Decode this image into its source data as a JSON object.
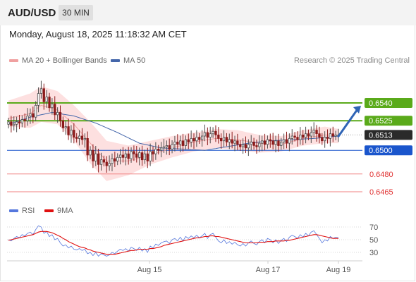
{
  "header": {
    "pair": "AUD/USD",
    "timeframe": "30 MIN"
  },
  "timestamp": "Monday, August 18, 2025 11:18:32 AM CET",
  "legend": {
    "ma20_label": "MA 20 + Bollinger Bands",
    "ma50_label": "MA 50",
    "credit": "Research © 2025 Trading Central"
  },
  "rsi_legend": {
    "rsi_label": "RSI",
    "ma9_label": "9MA"
  },
  "colors": {
    "up_candle": "#4d4d4d",
    "down_candle": "#8b1a1a",
    "bollinger_fill": "#fde0e0",
    "ma20": "#f0a0a0",
    "ma50": "#4466aa",
    "resistance": "#5aaa1a",
    "pivot": "#1a55cc",
    "support": "#f08080",
    "last_price": "#2a2a2a",
    "rsi_line": "#5577dd",
    "rsi_ma": "#e01010"
  },
  "chart_data": [
    {
      "type": "candlestick",
      "x_ticks": [
        "Aug 15",
        "Aug 17",
        "Aug 19"
      ],
      "price_levels": [
        {
          "label": "0.6540",
          "value": 0.654,
          "kind": "resistance"
        },
        {
          "label": "0.6525",
          "value": 0.6525,
          "kind": "resistance"
        },
        {
          "label": "0.6513",
          "value": 0.6513,
          "kind": "last"
        },
        {
          "label": "0.6500",
          "value": 0.65,
          "kind": "pivot"
        },
        {
          "label": "0.6480",
          "value": 0.648,
          "kind": "support"
        },
        {
          "label": "0.6465",
          "value": 0.6465,
          "kind": "support"
        }
      ],
      "closes": [
        0.6524,
        0.6521,
        0.6522,
        0.6524,
        0.6523,
        0.6526,
        0.6525,
        0.6529,
        0.6531,
        0.6528,
        0.6538,
        0.6548,
        0.6552,
        0.6541,
        0.6545,
        0.6536,
        0.6539,
        0.653,
        0.6532,
        0.6525,
        0.6519,
        0.652,
        0.6513,
        0.6517,
        0.6511,
        0.651,
        0.6512,
        0.6509,
        0.651,
        0.6496,
        0.65,
        0.6491,
        0.6497,
        0.6488,
        0.6492,
        0.649,
        0.6487,
        0.6489,
        0.6493,
        0.6491,
        0.6494,
        0.6496,
        0.6494,
        0.6497,
        0.6493,
        0.6499,
        0.6497,
        0.6494,
        0.6498,
        0.6492,
        0.6497,
        0.6491,
        0.6499,
        0.6497,
        0.6501,
        0.65,
        0.6502,
        0.6503,
        0.6504,
        0.6501,
        0.6505,
        0.6507,
        0.6505,
        0.6508,
        0.6504,
        0.6509,
        0.6507,
        0.651,
        0.6508,
        0.6511,
        0.6509,
        0.6512,
        0.6515,
        0.6511,
        0.6514,
        0.6516,
        0.6513,
        0.651,
        0.6508,
        0.6511,
        0.6507,
        0.6509,
        0.6506,
        0.6508,
        0.6505,
        0.6503,
        0.6505,
        0.6502,
        0.6505,
        0.6507,
        0.6504,
        0.6503,
        0.6506,
        0.6508,
        0.6505,
        0.6509,
        0.6508,
        0.6505,
        0.6508,
        0.6504,
        0.6507,
        0.6509,
        0.6506,
        0.651,
        0.6512,
        0.6511,
        0.6509,
        0.6513,
        0.6511,
        0.6514,
        0.6512,
        0.6515,
        0.6517,
        0.6514,
        0.6511,
        0.6508,
        0.6511,
        0.651,
        0.6514,
        0.6512,
        0.6513,
        0.6513
      ],
      "bollinger": {
        "x_index": [
          0,
          8,
          12,
          18,
          24,
          30,
          36,
          44,
          52,
          60,
          68,
          76,
          84,
          92,
          100,
          108,
          116,
          121
        ],
        "upper": [
          0.6542,
          0.6548,
          0.6554,
          0.655,
          0.6538,
          0.6524,
          0.6508,
          0.6504,
          0.6508,
          0.6512,
          0.6515,
          0.6518,
          0.6517,
          0.6513,
          0.6512,
          0.6517,
          0.652,
          0.6518
        ],
        "lower": [
          0.652,
          0.6519,
          0.6524,
          0.6522,
          0.6508,
          0.6489,
          0.6474,
          0.6479,
          0.6488,
          0.6494,
          0.6499,
          0.6502,
          0.65,
          0.6498,
          0.6499,
          0.6504,
          0.6506,
          0.6506
        ]
      },
      "ma20": {
        "x_index": [
          0,
          8,
          12,
          18,
          24,
          30,
          36,
          44,
          52,
          60,
          68,
          76,
          84,
          92,
          100,
          108,
          116,
          121
        ],
        "values": [
          0.6527,
          0.6531,
          0.6538,
          0.6534,
          0.6522,
          0.6506,
          0.6491,
          0.6491,
          0.6496,
          0.6502,
          0.6507,
          0.651,
          0.6509,
          0.6506,
          0.6505,
          0.651,
          0.6513,
          0.6512
        ]
      },
      "ma50": {
        "x_index": [
          0,
          8,
          16,
          24,
          32,
          40,
          48,
          56,
          64,
          72,
          80,
          88,
          96,
          104,
          112,
          121
        ],
        "values": [
          0.6522,
          0.6528,
          0.6532,
          0.6529,
          0.6523,
          0.6515,
          0.6506,
          0.6502,
          0.6501,
          0.65,
          0.6503,
          0.6506,
          0.6508,
          0.6509,
          0.651,
          0.6512
        ]
      },
      "forecast": {
        "from": 0.6513,
        "to": 0.654
      }
    },
    {
      "type": "line",
      "y_ticks": [
        70,
        50,
        30
      ],
      "ylim": [
        20,
        80
      ],
      "series": [
        {
          "name": "RSI",
          "values": [
            50,
            48,
            52,
            55,
            53,
            58,
            56,
            60,
            62,
            58,
            66,
            72,
            70,
            60,
            63,
            55,
            58,
            50,
            52,
            45,
            40,
            42,
            37,
            40,
            35,
            34,
            36,
            33,
            35,
            28,
            30,
            25,
            30,
            24,
            28,
            26,
            24,
            26,
            30,
            28,
            32,
            35,
            33,
            36,
            32,
            38,
            36,
            33,
            38,
            32,
            36,
            30,
            40,
            37,
            43,
            41,
            45,
            47,
            48,
            44,
            50,
            52,
            48,
            54,
            48,
            55,
            52,
            56,
            53,
            57,
            53,
            56,
            60,
            52,
            58,
            60,
            54,
            48,
            45,
            50,
            44,
            47,
            43,
            46,
            42,
            40,
            44,
            40,
            45,
            48,
            44,
            42,
            47,
            50,
            45,
            52,
            50,
            45,
            50,
            44,
            49,
            52,
            47,
            54,
            57,
            55,
            52,
            58,
            54,
            60,
            56,
            62,
            64,
            58,
            52,
            45,
            50,
            48,
            55,
            52,
            54,
            53
          ]
        },
        {
          "name": "9MA",
          "values": [
            49,
            50,
            51,
            52,
            53,
            54,
            55,
            56,
            57,
            58,
            60,
            62,
            63,
            63,
            63,
            62,
            61,
            59,
            57,
            55,
            52,
            50,
            47,
            45,
            43,
            41,
            39,
            38,
            37,
            35,
            34,
            32,
            31,
            30,
            29,
            28,
            27,
            27,
            27,
            27,
            28,
            29,
            30,
            31,
            32,
            33,
            33,
            34,
            35,
            35,
            35,
            35,
            36,
            36,
            37,
            38,
            39,
            41,
            42,
            43,
            44,
            45,
            46,
            47,
            48,
            49,
            50,
            51,
            52,
            53,
            53,
            54,
            55,
            55,
            56,
            56,
            55,
            55,
            54,
            53,
            52,
            51,
            50,
            49,
            48,
            47,
            46,
            45,
            45,
            45,
            45,
            45,
            46,
            46,
            46,
            47,
            47,
            47,
            48,
            48,
            48,
            48,
            49,
            49,
            50,
            51,
            52,
            53,
            54,
            55,
            56,
            57,
            58,
            58,
            57,
            56,
            55,
            54,
            53,
            52,
            52,
            52
          ]
        }
      ]
    }
  ]
}
